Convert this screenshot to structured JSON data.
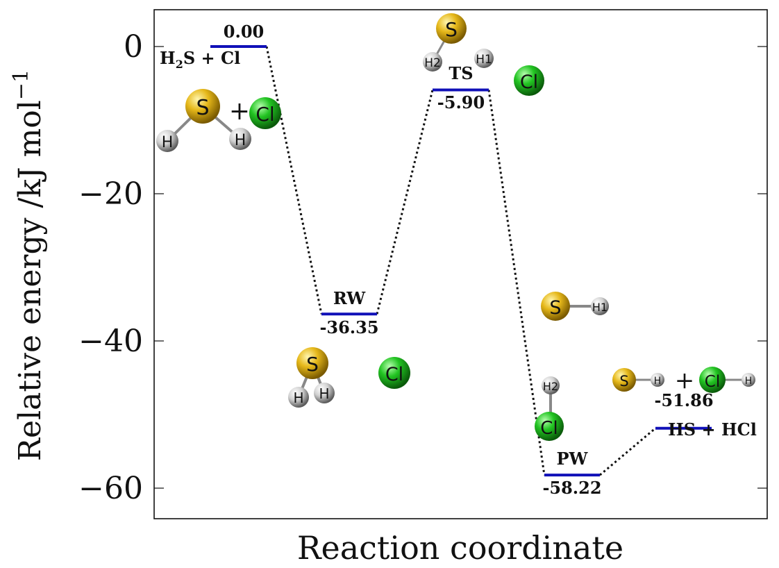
{
  "chart_data": {
    "type": "line",
    "title": "",
    "xlabel": "Reaction coordinate",
    "ylabel": "Relative energy /kJ mol",
    "ylabel_superscript": "−1",
    "ylim": [
      -68,
      5
    ],
    "yticks": [
      0,
      -20,
      -40,
      -60
    ],
    "ytick_labels": [
      "0",
      "−20",
      "−40",
      "−60"
    ],
    "grid": false,
    "series": [
      {
        "levels": [
          {
            "label": "H2S + Cl",
            "value": 0.0,
            "value_text": "0.00",
            "name_main": "H",
            "name_sub": "2",
            "name_rest": "S + Cl"
          },
          {
            "label": "RW",
            "value": -36.35,
            "value_text": "-36.35"
          },
          {
            "label": "TS",
            "value": -5.9,
            "value_text": "-5.90"
          },
          {
            "label": "PW",
            "value": -58.22,
            "value_text": "-58.22"
          },
          {
            "label": "HS + HCl",
            "value": -51.86,
            "value_text": "-51.86"
          }
        ]
      }
    ],
    "colors": {
      "level_line": "#1010b8",
      "connector": "#111111",
      "sulfur": "#e6b81a",
      "chlorine": "#22c422",
      "hydrogen": "#d8d8d8"
    },
    "molecule_labels": {
      "sulfur": "S",
      "chlorine": "Cl",
      "hydrogen": "H",
      "h1": "H1",
      "h2": "H2",
      "plus": "+"
    }
  }
}
